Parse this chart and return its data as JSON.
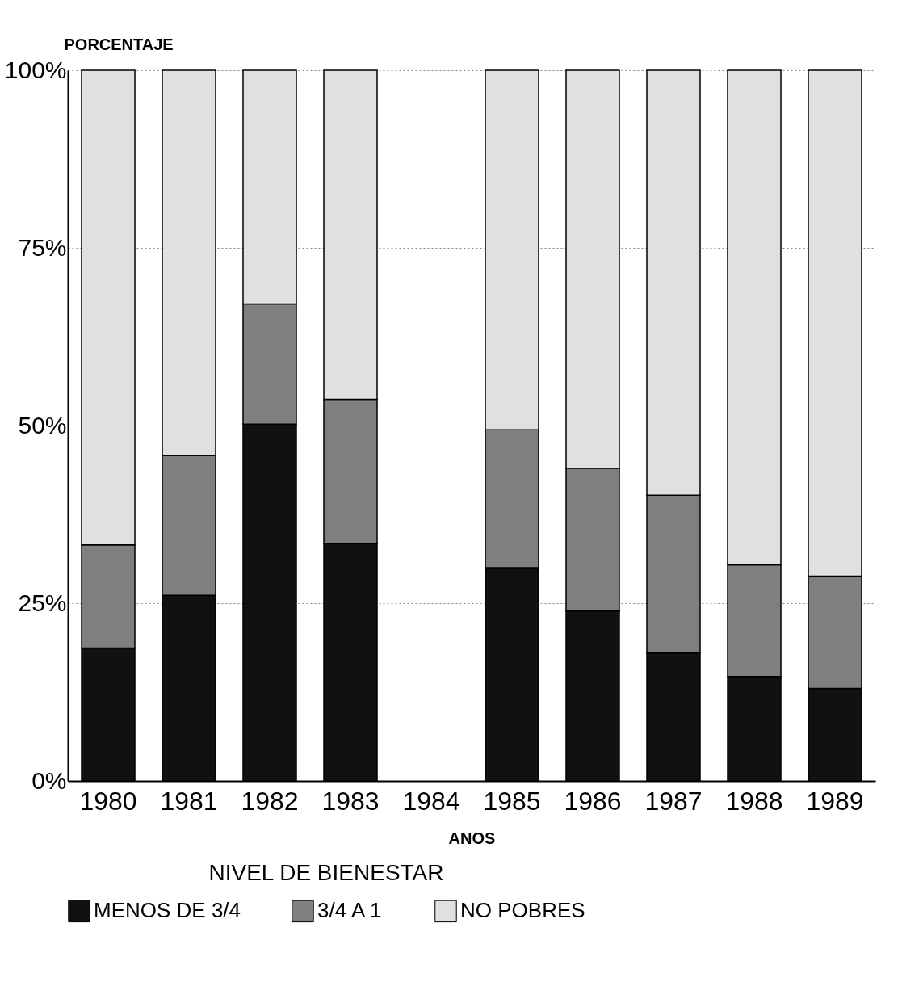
{
  "chart_data": {
    "type": "bar",
    "stacked": true,
    "xlabel": "ANOS",
    "ylabel": "PORCENTAJE",
    "legend_title": "NIVEL DE BIENESTAR",
    "legend": "bottom",
    "grid": "y",
    "categories": [
      "1980",
      "1981",
      "1982",
      "1983",
      "1984",
      "1985",
      "1986",
      "1987",
      "1988",
      "1989"
    ],
    "ylim": [
      0,
      100
    ],
    "yticks": [
      {
        "value": 0,
        "label": "0%"
      },
      {
        "value": 25,
        "label": "25%"
      },
      {
        "value": 50,
        "label": "50%"
      },
      {
        "value": 75,
        "label": "75%"
      },
      {
        "value": 100,
        "label": "100%"
      }
    ],
    "series": [
      {
        "name": "MENOS DE 3/4",
        "color": "#111111",
        "values": [
          18.7,
          26.1,
          50.2,
          33.4,
          null,
          30.0,
          23.9,
          18.0,
          14.7,
          13.0
        ]
      },
      {
        "name": "3/4 A 1",
        "color": "#7f7f7f",
        "values": [
          14.5,
          19.7,
          16.9,
          20.3,
          null,
          19.4,
          20.1,
          22.2,
          15.7,
          15.8
        ]
      },
      {
        "name": "NO POBRES",
        "color": "#e0e0e0",
        "values": [
          66.8,
          54.2,
          32.9,
          46.3,
          null,
          50.6,
          56.0,
          59.8,
          69.6,
          71.2
        ]
      }
    ]
  }
}
